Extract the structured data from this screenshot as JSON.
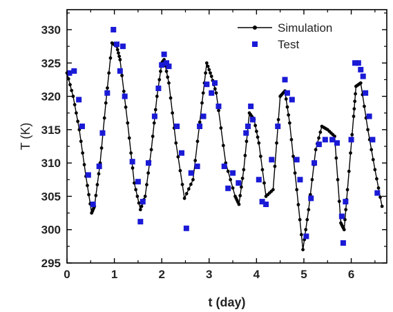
{
  "chart_data": {
    "type": "scatter",
    "title": "",
    "xlabel": "t (day)",
    "ylabel": "T (K)",
    "xlim": [
      0,
      6.75
    ],
    "ylim": [
      295,
      333
    ],
    "x_ticks": [
      0,
      1,
      2,
      3,
      4,
      5,
      6
    ],
    "y_ticks": [
      295,
      300,
      305,
      310,
      315,
      320,
      325,
      330
    ],
    "grid": false,
    "legend_position": "top-right",
    "colors": {
      "simulation": "#000000",
      "test": "#1a1ad6"
    },
    "series": [
      {
        "name": "Simulation",
        "style": "line-with-dots",
        "points": [
          [
            0.0,
            323.5
          ],
          [
            0.13,
            320.0
          ],
          [
            0.26,
            315.0
          ],
          [
            0.4,
            308.0
          ],
          [
            0.52,
            302.5
          ],
          [
            0.58,
            303.5
          ],
          [
            0.7,
            310.0
          ],
          [
            0.82,
            319.0
          ],
          [
            0.95,
            328.0
          ],
          [
            1.05,
            327.5
          ],
          [
            1.12,
            325.5
          ],
          [
            1.28,
            316.0
          ],
          [
            1.42,
            307.0
          ],
          [
            1.55,
            303.0
          ],
          [
            1.65,
            305.0
          ],
          [
            1.78,
            312.0
          ],
          [
            1.9,
            320.0
          ],
          [
            2.0,
            325.0
          ],
          [
            2.05,
            325.5
          ],
          [
            2.15,
            322.0
          ],
          [
            2.3,
            313.0
          ],
          [
            2.48,
            304.7
          ],
          [
            2.66,
            307.5
          ],
          [
            2.85,
            319.0
          ],
          [
            2.95,
            325.0
          ],
          [
            3.05,
            323.0
          ],
          [
            3.15,
            320.5
          ],
          [
            3.35,
            310.0
          ],
          [
            3.55,
            305.0
          ],
          [
            3.63,
            303.8
          ],
          [
            3.73,
            309.0
          ],
          [
            3.85,
            317.5
          ],
          [
            3.95,
            316.5
          ],
          [
            4.05,
            313.0
          ],
          [
            4.2,
            305.0
          ],
          [
            4.35,
            306.0
          ],
          [
            4.5,
            320.0
          ],
          [
            4.6,
            320.8
          ],
          [
            4.7,
            316.0
          ],
          [
            4.85,
            306.0
          ],
          [
            4.98,
            297.0
          ],
          [
            5.1,
            303.0
          ],
          [
            5.25,
            312.0
          ],
          [
            5.38,
            315.5
          ],
          [
            5.5,
            315.0
          ],
          [
            5.65,
            314.0
          ],
          [
            5.78,
            301.0
          ],
          [
            5.85,
            300.0
          ],
          [
            5.92,
            306.0
          ],
          [
            6.05,
            317.0
          ],
          [
            6.1,
            321.5
          ],
          [
            6.2,
            322.0
          ],
          [
            6.35,
            315.0
          ],
          [
            6.5,
            309.0
          ],
          [
            6.65,
            303.5
          ]
        ]
      },
      {
        "name": "Test",
        "style": "square-markers",
        "points": [
          [
            0.05,
            323.5
          ],
          [
            0.15,
            323.8
          ],
          [
            0.25,
            319.5
          ],
          [
            0.32,
            315.5
          ],
          [
            0.45,
            308.2
          ],
          [
            0.55,
            303.8
          ],
          [
            0.68,
            309.5
          ],
          [
            0.75,
            314.5
          ],
          [
            0.85,
            320.5
          ],
          [
            0.98,
            330.0
          ],
          [
            1.05,
            327.8
          ],
          [
            1.12,
            323.8
          ],
          [
            1.18,
            327.5
          ],
          [
            1.22,
            320.0
          ],
          [
            1.38,
            310.2
          ],
          [
            1.5,
            307.2
          ],
          [
            1.55,
            301.2
          ],
          [
            1.6,
            304.2
          ],
          [
            1.72,
            310.0
          ],
          [
            1.85,
            317.0
          ],
          [
            1.93,
            321.2
          ],
          [
            2.0,
            324.7
          ],
          [
            2.05,
            326.3
          ],
          [
            2.1,
            325.0
          ],
          [
            2.15,
            324.5
          ],
          [
            2.32,
            315.5
          ],
          [
            2.42,
            311.5
          ],
          [
            2.52,
            300.2
          ],
          [
            2.62,
            308.5
          ],
          [
            2.75,
            309.5
          ],
          [
            2.8,
            315.5
          ],
          [
            2.88,
            317.0
          ],
          [
            2.95,
            321.8
          ],
          [
            3.05,
            320.5
          ],
          [
            3.12,
            322.0
          ],
          [
            3.2,
            318.5
          ],
          [
            3.32,
            309.5
          ],
          [
            3.4,
            306.2
          ],
          [
            3.5,
            308.5
          ],
          [
            3.62,
            307.0
          ],
          [
            3.78,
            314.5
          ],
          [
            3.82,
            315.5
          ],
          [
            3.88,
            318.5
          ],
          [
            3.92,
            316.5
          ],
          [
            4.05,
            307.5
          ],
          [
            4.12,
            304.2
          ],
          [
            4.2,
            303.8
          ],
          [
            4.32,
            310.5
          ],
          [
            4.45,
            315.5
          ],
          [
            4.6,
            322.5
          ],
          [
            4.65,
            320.5
          ],
          [
            4.75,
            319.5
          ],
          [
            4.85,
            310.5
          ],
          [
            4.92,
            307.5
          ],
          [
            5.05,
            299.0
          ],
          [
            5.15,
            304.7
          ],
          [
            5.22,
            310.0
          ],
          [
            5.32,
            312.8
          ],
          [
            5.45,
            313.5
          ],
          [
            5.6,
            313.5
          ],
          [
            5.7,
            313.0
          ],
          [
            5.8,
            302.0
          ],
          [
            5.83,
            298.0
          ],
          [
            5.88,
            304.2
          ],
          [
            6.0,
            313.5
          ],
          [
            6.08,
            325.0
          ],
          [
            6.15,
            325.0
          ],
          [
            6.2,
            324.0
          ],
          [
            6.25,
            323.0
          ],
          [
            6.3,
            320.5
          ],
          [
            6.38,
            317.0
          ],
          [
            6.45,
            313.5
          ],
          [
            6.55,
            305.5
          ]
        ]
      }
    ]
  }
}
